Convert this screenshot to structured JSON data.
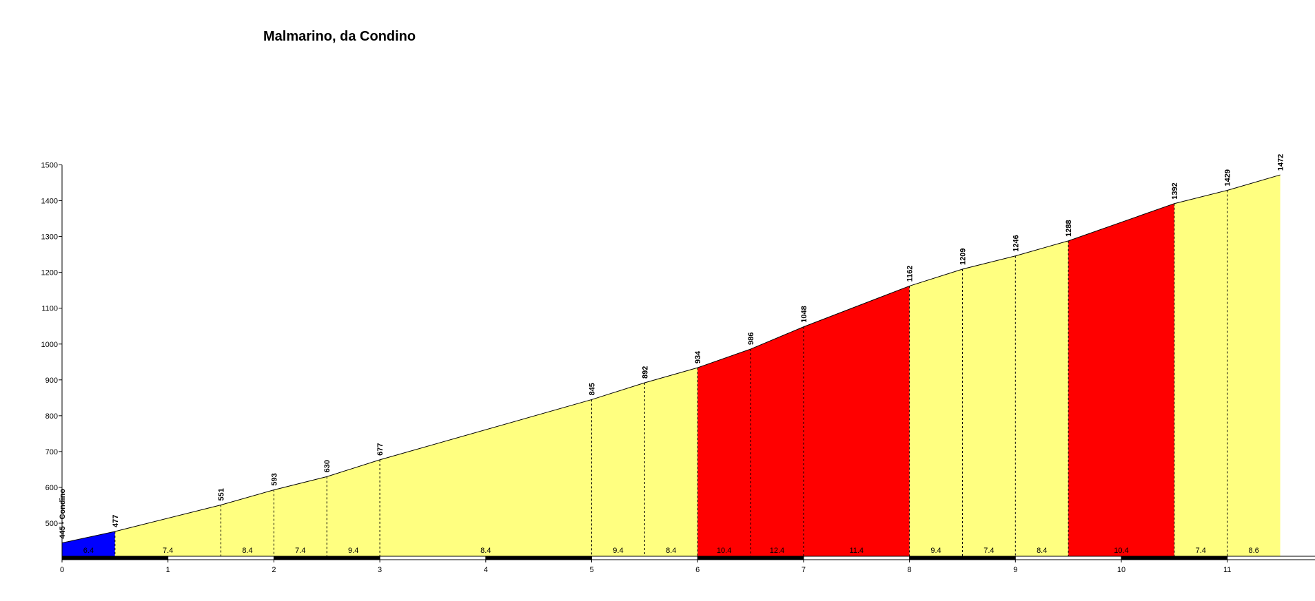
{
  "chart_data": {
    "type": "area",
    "title": "Malmarino, da Condino",
    "xlabel": "",
    "ylabel": "",
    "xlim": [
      0,
      11.5
    ],
    "ylim": [
      415,
      1500
    ],
    "x_ticks": [
      0,
      1,
      2,
      3,
      4,
      5,
      6,
      7,
      8,
      9,
      10,
      11
    ],
    "y_ticks": [
      500,
      600,
      700,
      800,
      900,
      1000,
      1100,
      1200,
      1300,
      1400,
      1500
    ],
    "points": [
      {
        "x": 0,
        "y": 445,
        "label": "445 - Condino"
      },
      {
        "x": 0.5,
        "y": 477,
        "label": "477"
      },
      {
        "x": 1.5,
        "y": 551,
        "label": "551"
      },
      {
        "x": 2,
        "y": 593,
        "label": "593"
      },
      {
        "x": 2.5,
        "y": 630,
        "label": "630"
      },
      {
        "x": 3,
        "y": 677,
        "label": "677"
      },
      {
        "x": 5,
        "y": 845,
        "label": "845"
      },
      {
        "x": 5.5,
        "y": 892,
        "label": "892"
      },
      {
        "x": 6,
        "y": 934,
        "label": "934"
      },
      {
        "x": 6.5,
        "y": 986,
        "label": "986"
      },
      {
        "x": 7,
        "y": 1048,
        "label": "1048"
      },
      {
        "x": 8,
        "y": 1162,
        "label": "1162"
      },
      {
        "x": 8.5,
        "y": 1209,
        "label": "1209"
      },
      {
        "x": 9,
        "y": 1246,
        "label": "1246"
      },
      {
        "x": 9.5,
        "y": 1288,
        "label": "1288"
      },
      {
        "x": 10.5,
        "y": 1392,
        "label": "1392"
      },
      {
        "x": 11,
        "y": 1429,
        "label": "1429"
      },
      {
        "x": 11.5,
        "y": 1472,
        "label": "1472"
      }
    ],
    "segments": [
      {
        "x0": 0,
        "x1": 0.5,
        "grade": "6.4",
        "color": "#0000ff"
      },
      {
        "x0": 0.5,
        "x1": 1.5,
        "grade": "7.4",
        "color": "#ffff80"
      },
      {
        "x0": 1.5,
        "x1": 2,
        "grade": "8.4",
        "color": "#ffff80"
      },
      {
        "x0": 2,
        "x1": 2.5,
        "grade": "7.4",
        "color": "#ffff80"
      },
      {
        "x0": 2.5,
        "x1": 3,
        "grade": "9.4",
        "color": "#ffff80"
      },
      {
        "x0": 3,
        "x1": 5,
        "grade": "8.4",
        "color": "#ffff80"
      },
      {
        "x0": 5,
        "x1": 5.5,
        "grade": "9.4",
        "color": "#ffff80"
      },
      {
        "x0": 5.5,
        "x1": 6,
        "grade": "8.4",
        "color": "#ffff80"
      },
      {
        "x0": 6,
        "x1": 6.5,
        "grade": "10.4",
        "color": "#ff0000"
      },
      {
        "x0": 6.5,
        "x1": 7,
        "grade": "12.4",
        "color": "#ff0000"
      },
      {
        "x0": 7,
        "x1": 8,
        "grade": "11.4",
        "color": "#ff0000"
      },
      {
        "x0": 8,
        "x1": 8.5,
        "grade": "9.4",
        "color": "#ffff80"
      },
      {
        "x0": 8.5,
        "x1": 9,
        "grade": "7.4",
        "color": "#ffff80"
      },
      {
        "x0": 9,
        "x1": 9.5,
        "grade": "8.4",
        "color": "#ffff80"
      },
      {
        "x0": 9.5,
        "x1": 10.5,
        "grade": "10.4",
        "color": "#ff0000"
      },
      {
        "x0": 10.5,
        "x1": 11,
        "grade": "7.4",
        "color": "#ffff80"
      },
      {
        "x0": 11,
        "x1": 11.5,
        "grade": "8.6",
        "color": "#ffff80"
      }
    ],
    "grid": false,
    "legend": "none"
  }
}
